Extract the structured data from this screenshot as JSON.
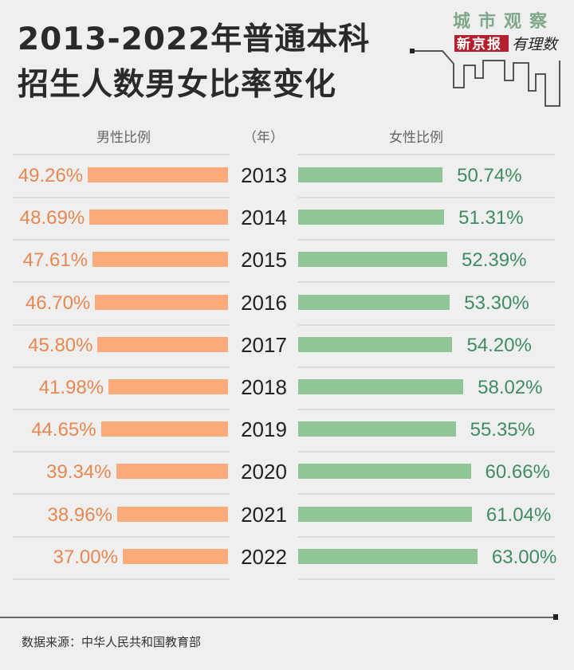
{
  "title_line1": "2013-2022年普通本科",
  "title_line2": "招生人数男女比率变化",
  "logo": {
    "line1": "城市观察",
    "brand": "新京报",
    "column": "有理数",
    "brand_color": "#b5202e"
  },
  "headers": {
    "male": "男性比例",
    "year": "（年）",
    "female": "女性比例"
  },
  "source": "数据来源：中华人民共和国教育部",
  "chart_data": {
    "type": "bar",
    "orientation": "horizontal-butterfly",
    "categories": [
      "2013",
      "2014",
      "2015",
      "2016",
      "2017",
      "2018",
      "2019",
      "2020",
      "2021",
      "2022"
    ],
    "series": [
      {
        "name": "男性比例",
        "color": "#fbaa79",
        "values": [
          49.26,
          48.69,
          47.61,
          46.7,
          45.8,
          41.98,
          44.65,
          39.34,
          38.96,
          37.0
        ],
        "labels": [
          "49.26%",
          "48.69%",
          "47.61%",
          "46.70%",
          "45.80%",
          "41.98%",
          "44.65%",
          "39.34%",
          "38.96%",
          "37.00%"
        ]
      },
      {
        "name": "女性比例",
        "color": "#8fc496",
        "values": [
          50.74,
          51.31,
          52.39,
          53.3,
          54.2,
          58.02,
          55.35,
          60.66,
          61.04,
          63.0
        ],
        "labels": [
          "50.74%",
          "51.31%",
          "52.39%",
          "53.30%",
          "54.20%",
          "58.02%",
          "55.35%",
          "60.66%",
          "61.04%",
          "63.00%"
        ]
      }
    ],
    "unit": "%"
  }
}
